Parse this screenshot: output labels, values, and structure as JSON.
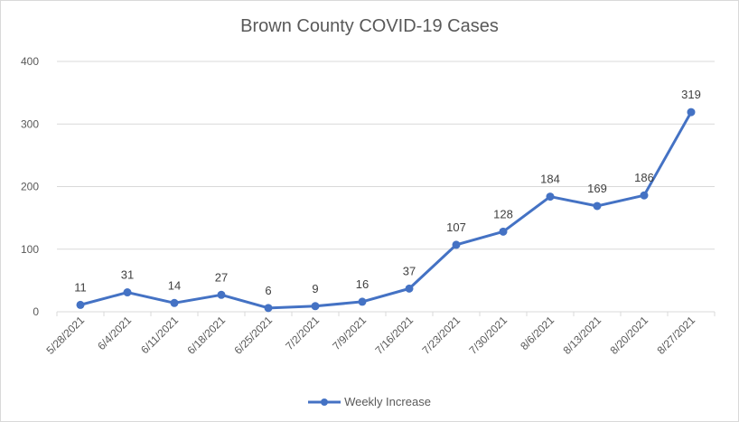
{
  "chart_data": {
    "type": "line",
    "title": "Brown County COVID-19 Cases",
    "xlabel": "",
    "ylabel": "",
    "ylim": [
      0,
      400
    ],
    "yticks": [
      0,
      100,
      200,
      300,
      400
    ],
    "grid": true,
    "legend_position": "bottom",
    "categories": [
      "5/28/2021",
      "6/4/2021",
      "6/11/2021",
      "6/18/2021",
      "6/25/2021",
      "7/2/2021",
      "7/9/2021",
      "7/16/2021",
      "7/23/2021",
      "7/30/2021",
      "8/6/2021",
      "8/13/2021",
      "8/20/2021",
      "8/27/2021"
    ],
    "series": [
      {
        "name": "Weekly Increase",
        "color": "#4472c4",
        "values": [
          11,
          31,
          14,
          27,
          6,
          9,
          16,
          37,
          107,
          128,
          184,
          169,
          186,
          319
        ]
      }
    ]
  }
}
